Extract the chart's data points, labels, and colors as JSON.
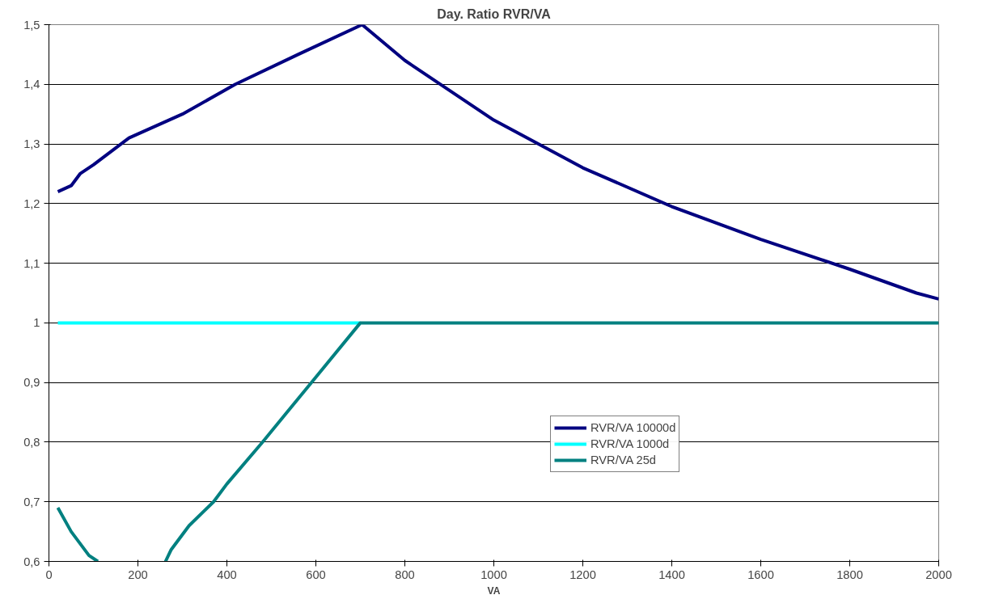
{
  "chart_data": {
    "type": "line",
    "title": "Day. Ratio RVR/VA",
    "xlabel": "VA",
    "xlim": [
      0,
      2000
    ],
    "xticks": [
      0,
      200,
      400,
      600,
      800,
      1000,
      1200,
      1400,
      1600,
      1800,
      2000
    ],
    "ylim": [
      0.6,
      1.5
    ],
    "yticks": [
      {
        "value": 0.6,
        "label": "0,6"
      },
      {
        "value": 0.7,
        "label": "0,7"
      },
      {
        "value": 0.8,
        "label": "0,8"
      },
      {
        "value": 0.9,
        "label": "0,9"
      },
      1,
      {
        "value": 1.1,
        "label": "1,1"
      },
      {
        "value": 1.2,
        "label": "1,2"
      },
      {
        "value": 1.3,
        "label": "1,3"
      },
      {
        "value": 1.4,
        "label": "1,4"
      },
      {
        "value": 1.5,
        "label": "1,5"
      }
    ],
    "grid": "y",
    "legend": "bottom",
    "line_style": "solid",
    "marker": "none",
    "series": [
      {
        "name": "RVR/VA 10000d",
        "color": "#000080",
        "x": [
          20,
          50,
          70,
          100,
          180,
          300,
          419,
          560,
          704,
          800,
          1000,
          1200,
          1400,
          1600,
          1800,
          1950,
          2000
        ],
        "values": [
          1.22,
          1.23,
          1.25,
          1.265,
          1.31,
          1.35,
          1.4,
          1.45,
          1.5,
          1.44,
          1.34,
          1.26,
          1.195,
          1.14,
          1.09,
          1.05,
          1.04
        ]
      },
      {
        "name": "RVR/VA 1000d",
        "color": "#00ffff",
        "x": [
          20,
          700
        ],
        "values": [
          1,
          1
        ]
      },
      {
        "name": "RVR/VA 25d",
        "color": "#008080",
        "x": [
          20,
          50,
          90,
          110,
          185,
          262,
          275,
          315,
          370,
          400,
          480,
          590,
          700,
          2000
        ],
        "values": [
          0.69,
          0.65,
          0.61,
          0.6,
          null,
          0.6,
          0.62,
          0.66,
          0.7,
          0.73,
          0.8,
          0.9,
          1,
          1
        ]
      }
    ]
  }
}
